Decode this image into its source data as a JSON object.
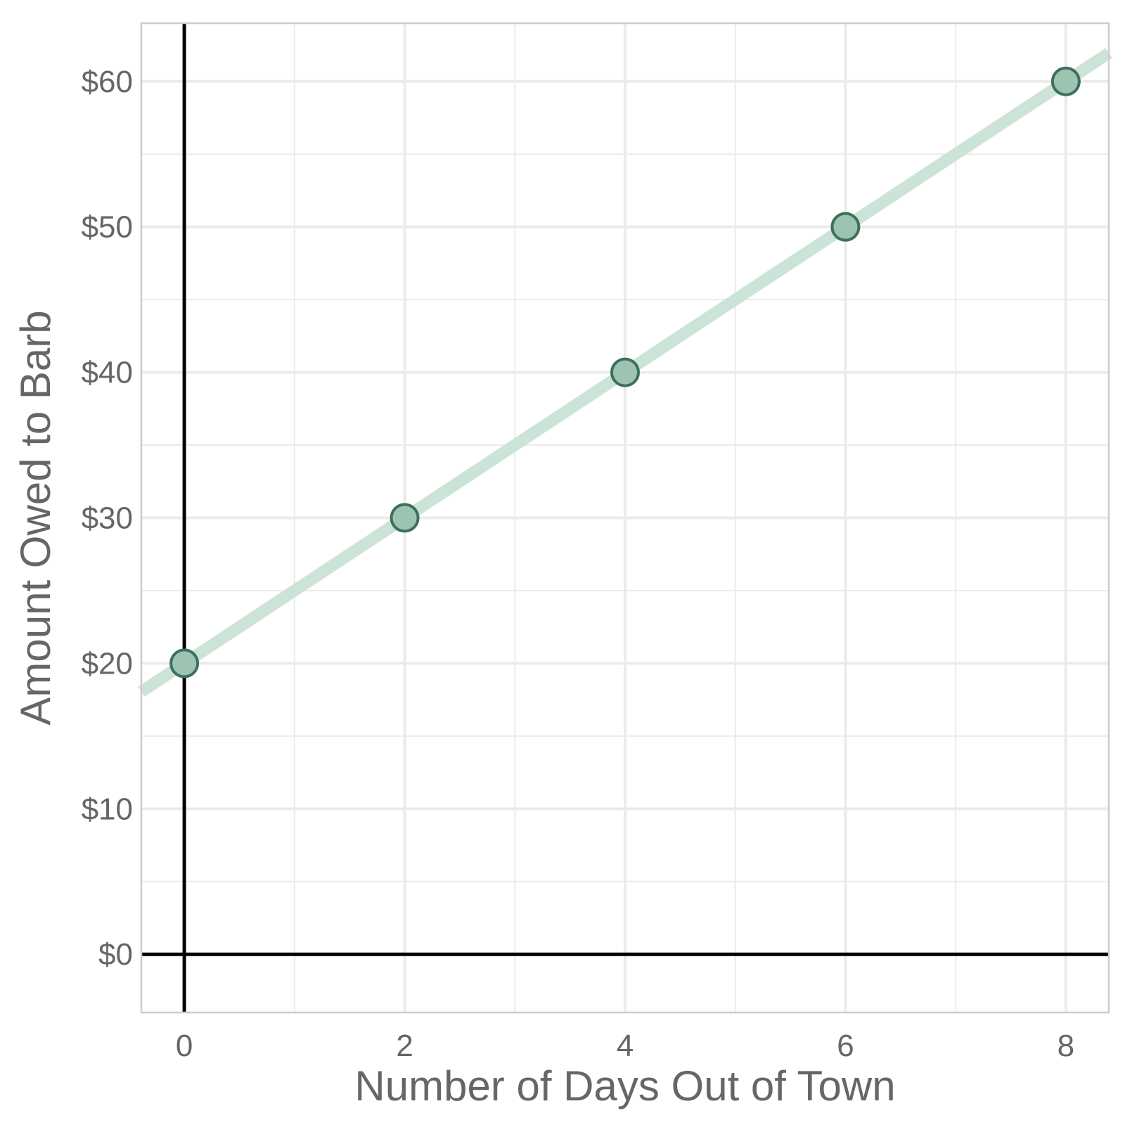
{
  "chart_data": {
    "type": "scatter",
    "xlabel": "Number of Days Out of Town",
    "ylabel": "Amount Owed to Barb",
    "xlim": [
      -0.39,
      8.39
    ],
    "ylim": [
      -4,
      64
    ],
    "x_ticks": [
      0,
      2,
      4,
      6,
      8
    ],
    "x_tick_labels": [
      "0",
      "2",
      "4",
      "6",
      "8"
    ],
    "y_ticks": [
      0,
      10,
      20,
      30,
      40,
      50,
      60
    ],
    "y_tick_labels": [
      "$0",
      "$10",
      "$20",
      "$30",
      "$40",
      "$50",
      "$60"
    ],
    "grid": true,
    "series": [
      {
        "x": [
          0,
          2,
          4,
          6,
          8
        ],
        "y": [
          20,
          30,
          40,
          50,
          60
        ]
      }
    ],
    "trend_line": {
      "intercept": 20,
      "slope": 5
    },
    "reference_lines": {
      "x": 0,
      "y": 0
    },
    "colors": {
      "point_fill": "#9dc3b1",
      "point_stroke": "#3d6f5c",
      "trend_line": "#cce3d8",
      "grid": "#ebebeb",
      "reference": "#000000",
      "panel_border": "#cccccc",
      "text": "#666666"
    }
  }
}
